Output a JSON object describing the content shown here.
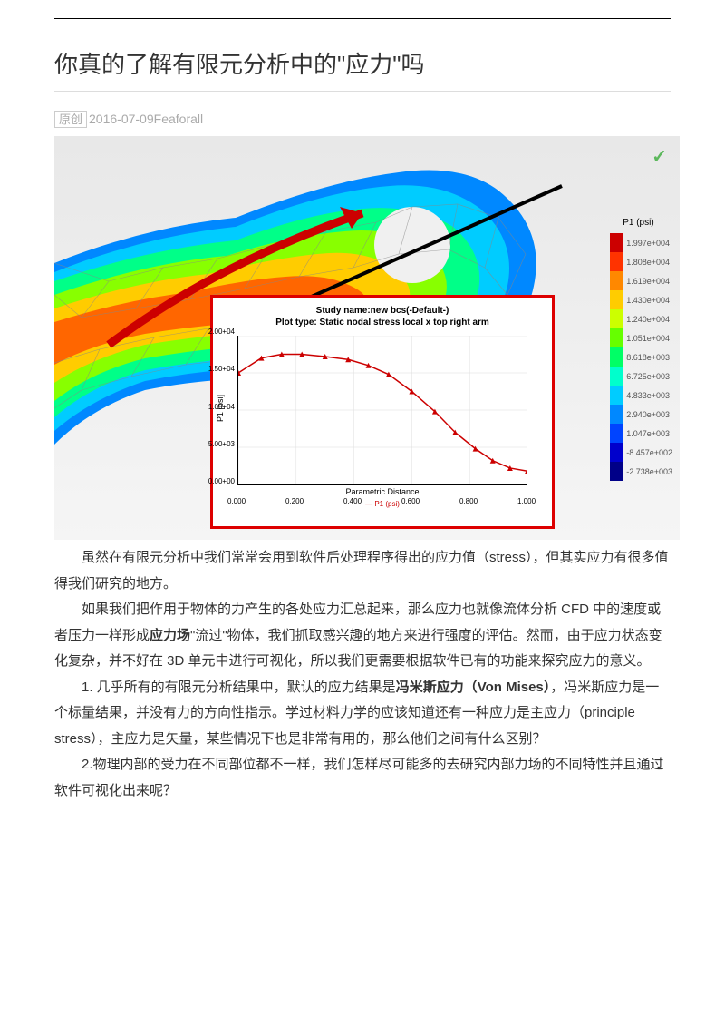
{
  "title": "你真的了解有限元分析中的\"应力\"吗",
  "meta": {
    "badge": "原创",
    "date": "2016-07-09",
    "author": "Feaforall"
  },
  "legend": {
    "title": "P1 (psi)",
    "items": [
      {
        "c": "#cc0000",
        "l": "1.997e+004"
      },
      {
        "c": "#ff3300",
        "l": "1.808e+004"
      },
      {
        "c": "#ff8800",
        "l": "1.619e+004"
      },
      {
        "c": "#ffcc00",
        "l": "1.430e+004"
      },
      {
        "c": "#ccff00",
        "l": "1.240e+004"
      },
      {
        "c": "#66ff00",
        "l": "1.051e+004"
      },
      {
        "c": "#00ff66",
        "l": "8.618e+003"
      },
      {
        "c": "#00ffcc",
        "l": "6.725e+003"
      },
      {
        "c": "#00ccff",
        "l": "4.833e+003"
      },
      {
        "c": "#0088ff",
        "l": "2.940e+003"
      },
      {
        "c": "#0044ff",
        "l": "1.047e+003"
      },
      {
        "c": "#0000cc",
        "l": "-8.457e+002"
      },
      {
        "c": "#000088",
        "l": "-2.738e+003"
      }
    ]
  },
  "chart": {
    "title1": "Study name:new bcs(-Default-)",
    "title2": "Plot type: Static nodal stress local x top right arm",
    "ylabel": "P1 [psi]",
    "xlabel": "Parametric Distance",
    "legend": "— P1 (psi)",
    "yticks": [
      "2.00+04",
      "1.50+04",
      "1.00+04",
      "5.00+03",
      "0.00+00"
    ],
    "xticks": [
      "0.000",
      "0.200",
      "0.400",
      "0.600",
      "0.800",
      "1.000"
    ],
    "points": [
      [
        0,
        15000
      ],
      [
        0.08,
        17000
      ],
      [
        0.15,
        17500
      ],
      [
        0.22,
        17500
      ],
      [
        0.3,
        17200
      ],
      [
        0.38,
        16800
      ],
      [
        0.45,
        16000
      ],
      [
        0.52,
        14800
      ],
      [
        0.6,
        12500
      ],
      [
        0.68,
        9800
      ],
      [
        0.75,
        7000
      ],
      [
        0.82,
        4800
      ],
      [
        0.88,
        3200
      ],
      [
        0.94,
        2200
      ],
      [
        1.0,
        1800
      ]
    ],
    "ylim": [
      0,
      20000
    ],
    "xlim": [
      0,
      1
    ]
  },
  "para": {
    "p1a": "虽然在有限元分析中我们常常会用到软件后处理程序得出的应力值（stress），但其实应力有很多值得我们研究的地方。",
    "p2a": "如果我们把作用于物体的力产生的各处应力汇总起来，那么应力也就像流体分析 CFD 中的速度或者压力一样形成",
    "p2b": "应力场",
    "p2c": "\"流过\"物体，我们抓取感兴趣的地方来进行强度的评估。然而，由于应力状态变化复杂，并不好在 3D 单元中进行可视化，所以我们更需要根据软件已有的功能来探究应力的意义。",
    "p3a": "1. 几乎所有的有限元分析结果中，默认的应力结果是",
    "p3b": "冯米斯应力（Von Mises）",
    "p3c": "，冯米斯应力是一个标量结果，并没有力的方向性指示。学过材料力学的应该知道还有一种应力是主应力（principle stress），主应力是矢量，某些情况下也是非常有用的，那么他们之间有什么区别？",
    "p4a": "2.物理内部的受力在不同部位都不一样，我们怎样尽可能多的去研究内部力场的不同特性并且通过软件可视化出来呢？"
  }
}
